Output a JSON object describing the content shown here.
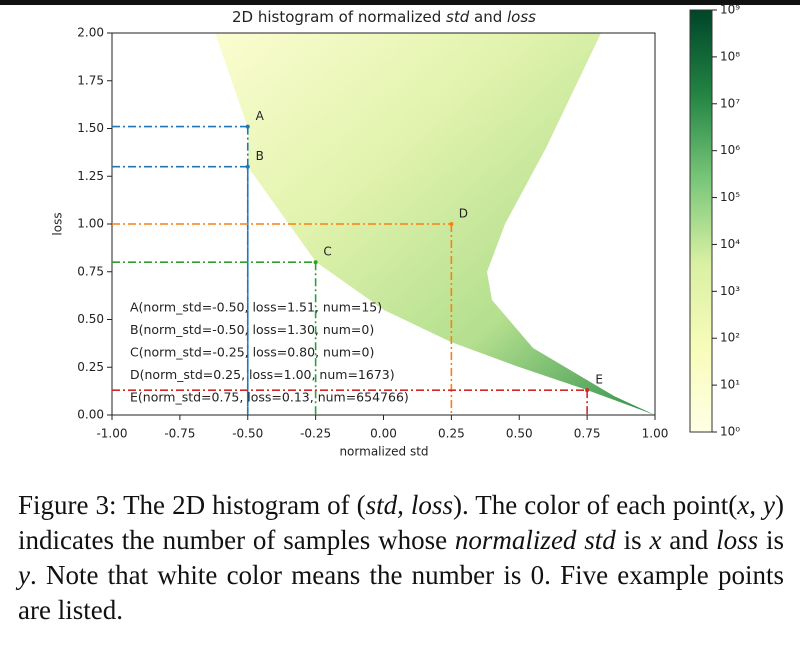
{
  "chart_data": {
    "type": "hist2d",
    "title_parts": [
      "2D histogram of normalized ",
      "std",
      " and ",
      "loss"
    ],
    "xlabel": "normalized std",
    "ylabel": "loss",
    "xlim": [
      -1,
      1
    ],
    "xticks": [
      {
        "value": -1,
        "label": "-1.00"
      },
      {
        "value": -0.75,
        "label": "-0.75"
      },
      {
        "value": -0.5,
        "label": "-0.50"
      },
      {
        "value": -0.25,
        "label": "-0.25"
      },
      {
        "value": 0,
        "label": "0.00"
      },
      {
        "value": 0.25,
        "label": "0.25"
      },
      {
        "value": 0.5,
        "label": "0.50"
      },
      {
        "value": 0.75,
        "label": "0.75"
      },
      {
        "value": 1,
        "label": "1.00"
      }
    ],
    "ylim": [
      0,
      2
    ],
    "yticks": [
      {
        "value": 0,
        "label": "0.00"
      },
      {
        "value": 0.25,
        "label": "0.25"
      },
      {
        "value": 0.5,
        "label": "0.50"
      },
      {
        "value": 0.75,
        "label": "0.75"
      },
      {
        "value": 1,
        "label": "1.00"
      },
      {
        "value": 1.25,
        "label": "1.25"
      },
      {
        "value": 1.5,
        "label": "1.50"
      },
      {
        "value": 1.75,
        "label": "1.75"
      },
      {
        "value": 2,
        "label": "2.00"
      }
    ],
    "annotations": [
      {
        "letter": "A",
        "x": -0.5,
        "y": 1.51,
        "color": "#1f77b4",
        "text": "A(norm_std=-0.50, loss=1.51, num=15)"
      },
      {
        "letter": "B",
        "x": -0.5,
        "y": 1.3,
        "color": "#1f77b4",
        "text": "B(norm_std=-0.50, loss=1.30, num=0)"
      },
      {
        "letter": "C",
        "x": -0.25,
        "y": 0.8,
        "color": "#2ca02c",
        "text": "C(norm_std=-0.25, loss=0.80, num=0)"
      },
      {
        "letter": "D",
        "x": 0.25,
        "y": 1.0,
        "color": "#ff7f0e",
        "text": "D(norm_std=0.25, loss=1.00, num=1673)"
      },
      {
        "letter": "E",
        "x": 0.75,
        "y": 0.13,
        "color": "#d62728",
        "text": "E(norm_std=0.75, loss=0.13, num=654766)"
      }
    ],
    "colorbar": {
      "scale": "log",
      "lim": [
        1,
        1000000000
      ],
      "ticks": [
        {
          "value": 1,
          "label": "10⁰"
        },
        {
          "value": 10,
          "label": "10¹"
        },
        {
          "value": 100,
          "label": "10²"
        },
        {
          "value": 1000,
          "label": "10³"
        },
        {
          "value": 10000,
          "label": "10⁴"
        },
        {
          "value": 100000,
          "label": "10⁵"
        },
        {
          "value": 1000000,
          "label": "10⁶"
        },
        {
          "value": 10000000,
          "label": "10⁷"
        },
        {
          "value": 100000000,
          "label": "10⁸"
        },
        {
          "value": 1000000000,
          "label": "10⁹"
        }
      ]
    }
  },
  "caption_parts": [
    "Figure 3: The 2D histogram of (",
    "std, loss",
    "). The color of each point(",
    "x, y",
    ") indicates the number of samples whose ",
    "normalized std",
    " is ",
    "x",
    " and ",
    "loss",
    " is ",
    "y",
    ". Note that white color means the number is 0. Five example points are listed."
  ]
}
